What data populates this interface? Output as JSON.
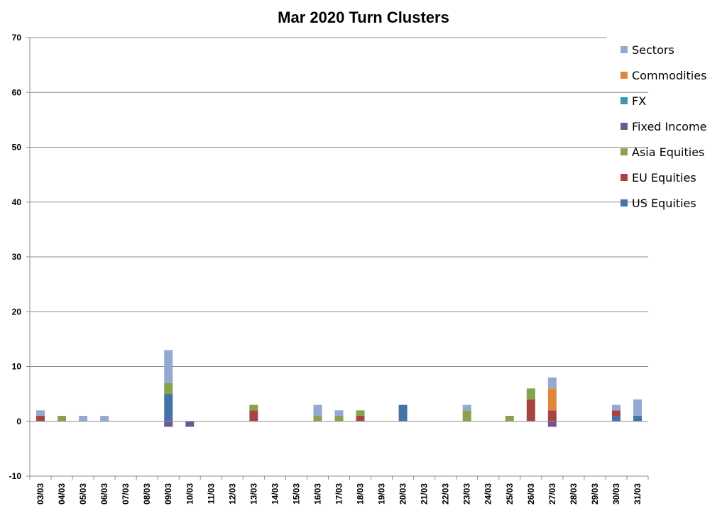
{
  "chart_data": {
    "type": "bar",
    "stacked": true,
    "title": "Mar 2020 Turn Clusters",
    "xlabel": "",
    "ylabel": "",
    "ylim": [
      -10,
      70
    ],
    "yticks": [
      -10,
      0,
      10,
      20,
      30,
      40,
      50,
      60,
      70
    ],
    "grid": true,
    "legend_position": "right",
    "categories": [
      "03/03",
      "04/03",
      "05/03",
      "06/03",
      "07/03",
      "08/03",
      "09/03",
      "10/03",
      "11/03",
      "12/03",
      "13/03",
      "14/03",
      "15/03",
      "16/03",
      "17/03",
      "18/03",
      "19/03",
      "20/03",
      "21/03",
      "22/03",
      "23/03",
      "24/03",
      "25/03",
      "26/03",
      "27/03",
      "28/03",
      "29/03",
      "30/03",
      "31/03"
    ],
    "series": [
      {
        "name": "US Equities",
        "color": "#4672a8",
        "values": [
          0,
          0,
          0,
          0,
          0,
          0,
          5,
          0,
          0,
          0,
          0,
          0,
          0,
          0,
          0,
          0,
          0,
          3,
          0,
          0,
          0,
          0,
          0,
          0,
          0,
          0,
          0,
          1,
          1
        ]
      },
      {
        "name": "EU Equities",
        "color": "#a74442",
        "values": [
          1,
          0,
          0,
          0,
          0,
          0,
          0,
          0,
          0,
          0,
          2,
          0,
          0,
          0,
          0,
          1,
          0,
          0,
          0,
          0,
          0,
          0,
          0,
          4,
          2,
          0,
          0,
          1,
          0
        ]
      },
      {
        "name": "Asia Equities",
        "color": "#87a34b",
        "values": [
          0,
          1,
          0,
          0,
          0,
          0,
          2,
          0,
          0,
          0,
          1,
          0,
          0,
          1,
          1,
          1,
          0,
          0,
          0,
          0,
          2,
          0,
          1,
          2,
          0,
          0,
          0,
          0,
          0
        ]
      },
      {
        "name": "Fixed Income",
        "color": "#6f5691",
        "values": [
          0,
          0,
          0,
          0,
          0,
          0,
          -1,
          -1,
          0,
          0,
          0,
          0,
          0,
          0,
          0,
          0,
          0,
          0,
          0,
          0,
          0,
          0,
          0,
          0,
          -1,
          0,
          0,
          0,
          0
        ]
      },
      {
        "name": "FX",
        "color": "#3f97ad",
        "values": [
          0,
          0,
          0,
          0,
          0,
          0,
          0,
          0,
          0,
          0,
          0,
          0,
          0,
          0,
          0,
          0,
          0,
          0,
          0,
          0,
          0,
          0,
          0,
          0,
          0,
          0,
          0,
          0,
          0
        ]
      },
      {
        "name": "Commodities",
        "color": "#e0873a",
        "values": [
          0,
          0,
          0,
          0,
          0,
          0,
          0,
          0,
          0,
          0,
          0,
          0,
          0,
          0,
          0,
          0,
          0,
          0,
          0,
          0,
          0,
          0,
          0,
          0,
          4,
          0,
          0,
          0,
          0
        ]
      },
      {
        "name": "Sectors",
        "color": "#93a9d2",
        "values": [
          1,
          0,
          1,
          1,
          0,
          0,
          6,
          0,
          0,
          0,
          0,
          0,
          0,
          2,
          1,
          0,
          0,
          0,
          0,
          0,
          1,
          0,
          0,
          0,
          2,
          0,
          0,
          1,
          3
        ]
      }
    ],
    "legend_order": [
      "Sectors",
      "Commodities",
      "FX",
      "Fixed Income",
      "Asia Equities",
      "EU Equities",
      "US Equities"
    ]
  }
}
